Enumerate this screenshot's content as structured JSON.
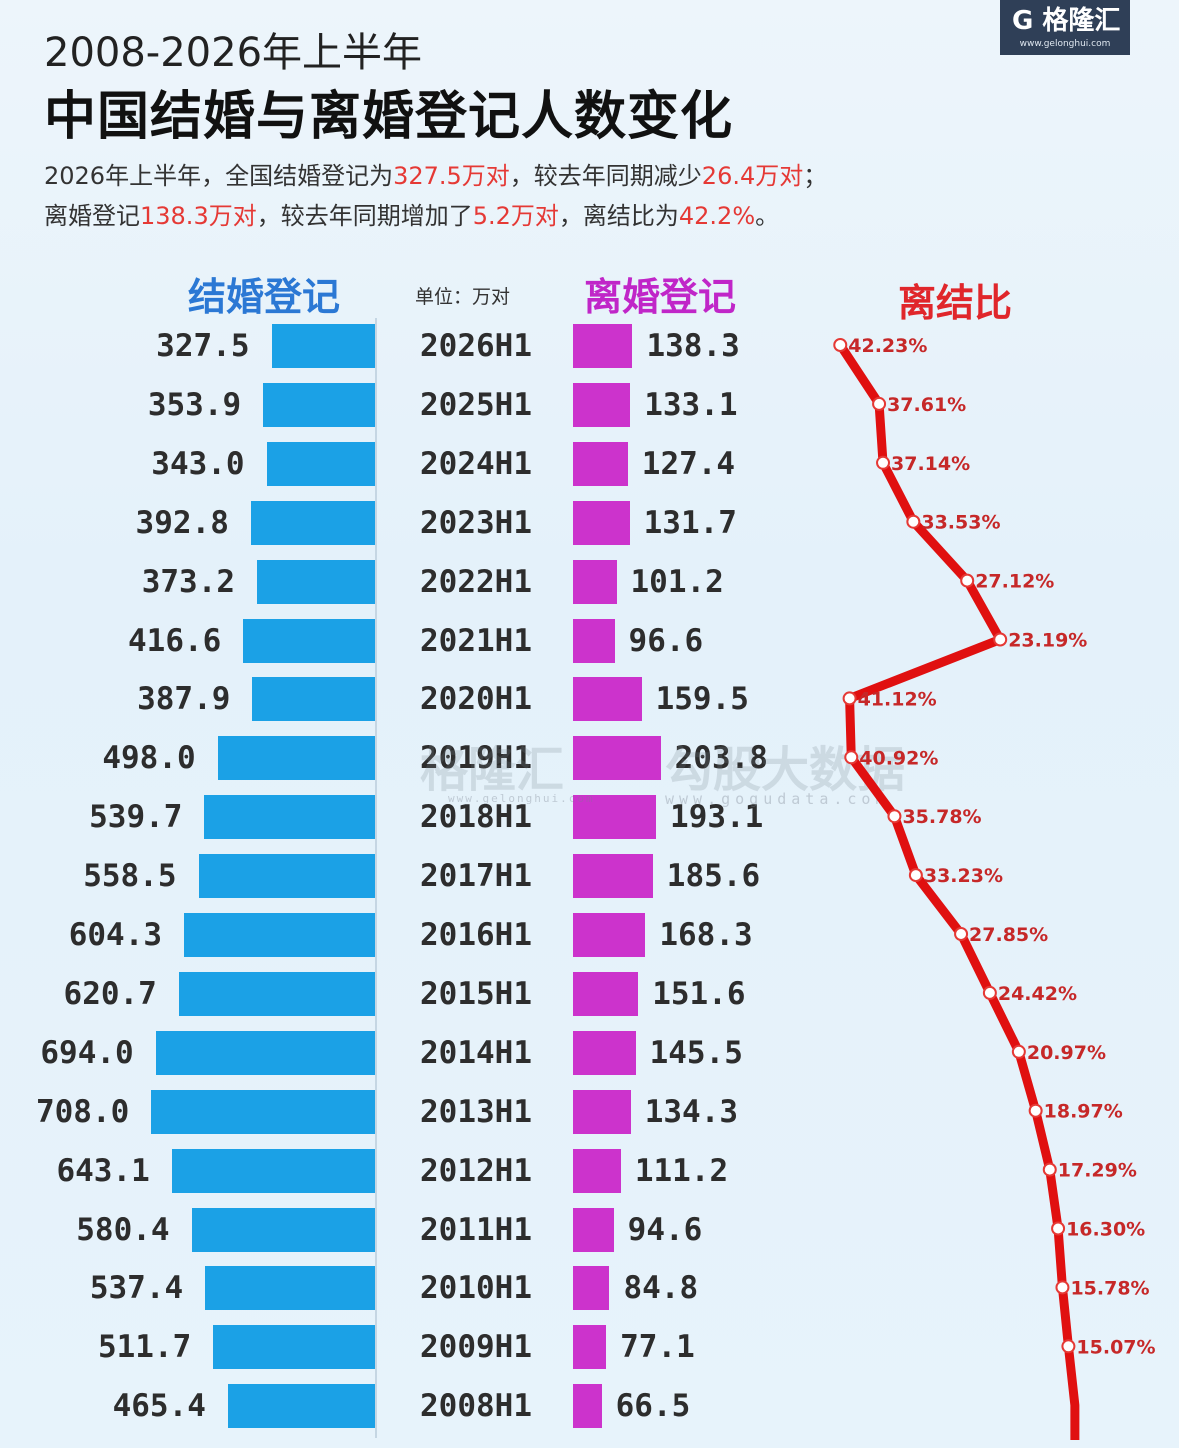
{
  "logo": {
    "mark": "G 格隆汇",
    "url": "www.gelonghui.com"
  },
  "subtitle": "2008-2026年上半年",
  "title": "中国结婚与离婚登记人数变化",
  "summary": {
    "line1_a": "2026年上半年，全国结婚登记为",
    "line1_b": "327.5万对",
    "line1_c": "，较去年同期减少",
    "line1_d": "26.4万对",
    "line1_e": "；",
    "line2_a": "离婚登记",
    "line2_b": "138.3万对",
    "line2_c": "，较去年同期增加了",
    "line2_d": "5.2万对",
    "line2_e": "，离结比为",
    "line2_f": "42.2%",
    "line2_g": "。"
  },
  "headers": {
    "marriage": "结婚登记",
    "unit": "单位：万对",
    "divorce": "离婚登记",
    "ratio": "离结比"
  },
  "watermarks": {
    "left": "格隆汇",
    "left_url": "www.gelonghui.com",
    "right": "勾股大数据",
    "right_url": "www.gogudata.com"
  },
  "colors": {
    "marriage": "#1ba1e6",
    "divorce": "#cc33cc",
    "ratio": "#e01010",
    "marriage_head": "#2b78d4",
    "divorce_head": "#c026c8",
    "ratio_head": "#e0262b"
  },
  "chart_data": {
    "type": "bar",
    "categories": [
      "2026H1",
      "2025H1",
      "2024H1",
      "2023H1",
      "2022H1",
      "2021H1",
      "2020H1",
      "2019H1",
      "2018H1",
      "2017H1",
      "2016H1",
      "2015H1",
      "2014H1",
      "2013H1",
      "2012H1",
      "2011H1",
      "2010H1",
      "2009H1",
      "2008H1"
    ],
    "series": [
      {
        "name": "结婚登记",
        "values": [
          327.5,
          353.9,
          343.0,
          392.8,
          373.2,
          416.6,
          387.9,
          498.0,
          539.7,
          558.5,
          604.3,
          620.7,
          694.0,
          708.0,
          643.1,
          580.4,
          537.4,
          511.7,
          465.4
        ],
        "labels": [
          "327.5",
          "353.9",
          "343.0",
          "392.8",
          "373.2",
          "416.6",
          "387.9",
          "498.0",
          "539.7",
          "558.5",
          "604.3",
          "620.7",
          "694.0",
          "708.0",
          "643.1",
          "580.4",
          "537.4",
          "511.7",
          "465.4"
        ]
      },
      {
        "name": "离婚登记",
        "values": [
          138.3,
          133.1,
          127.4,
          131.7,
          101.2,
          96.6,
          159.5,
          203.8,
          193.1,
          185.6,
          168.3,
          151.6,
          145.5,
          134.3,
          111.2,
          94.6,
          84.8,
          77.1,
          66.5
        ],
        "labels": [
          "138.3",
          "133.1",
          "127.4",
          "131.7",
          "101.2",
          "96.6",
          "159.5",
          "203.8",
          "193.1",
          "185.6",
          "168.3",
          "151.6",
          "145.5",
          "134.3",
          "111.2",
          "94.6",
          "84.8",
          "77.1",
          "66.5"
        ]
      },
      {
        "name": "离结比",
        "type": "line",
        "values": [
          42.23,
          37.61,
          37.14,
          33.53,
          27.12,
          23.19,
          41.12,
          40.92,
          35.78,
          33.23,
          27.85,
          24.42,
          20.97,
          18.97,
          17.29,
          16.3,
          15.78,
          15.07,
          14.3
        ],
        "labels": [
          "42.23%",
          "37.61%",
          "37.14%",
          "33.53%",
          "27.12%",
          "23.19%",
          "41.12%",
          "40.92%",
          "35.78%",
          "33.23%",
          "27.85%",
          "24.42%",
          "20.97%",
          "18.97%",
          "17.29%",
          "16.30%",
          "15.78%",
          "15.07%",
          ""
        ]
      }
    ]
  }
}
